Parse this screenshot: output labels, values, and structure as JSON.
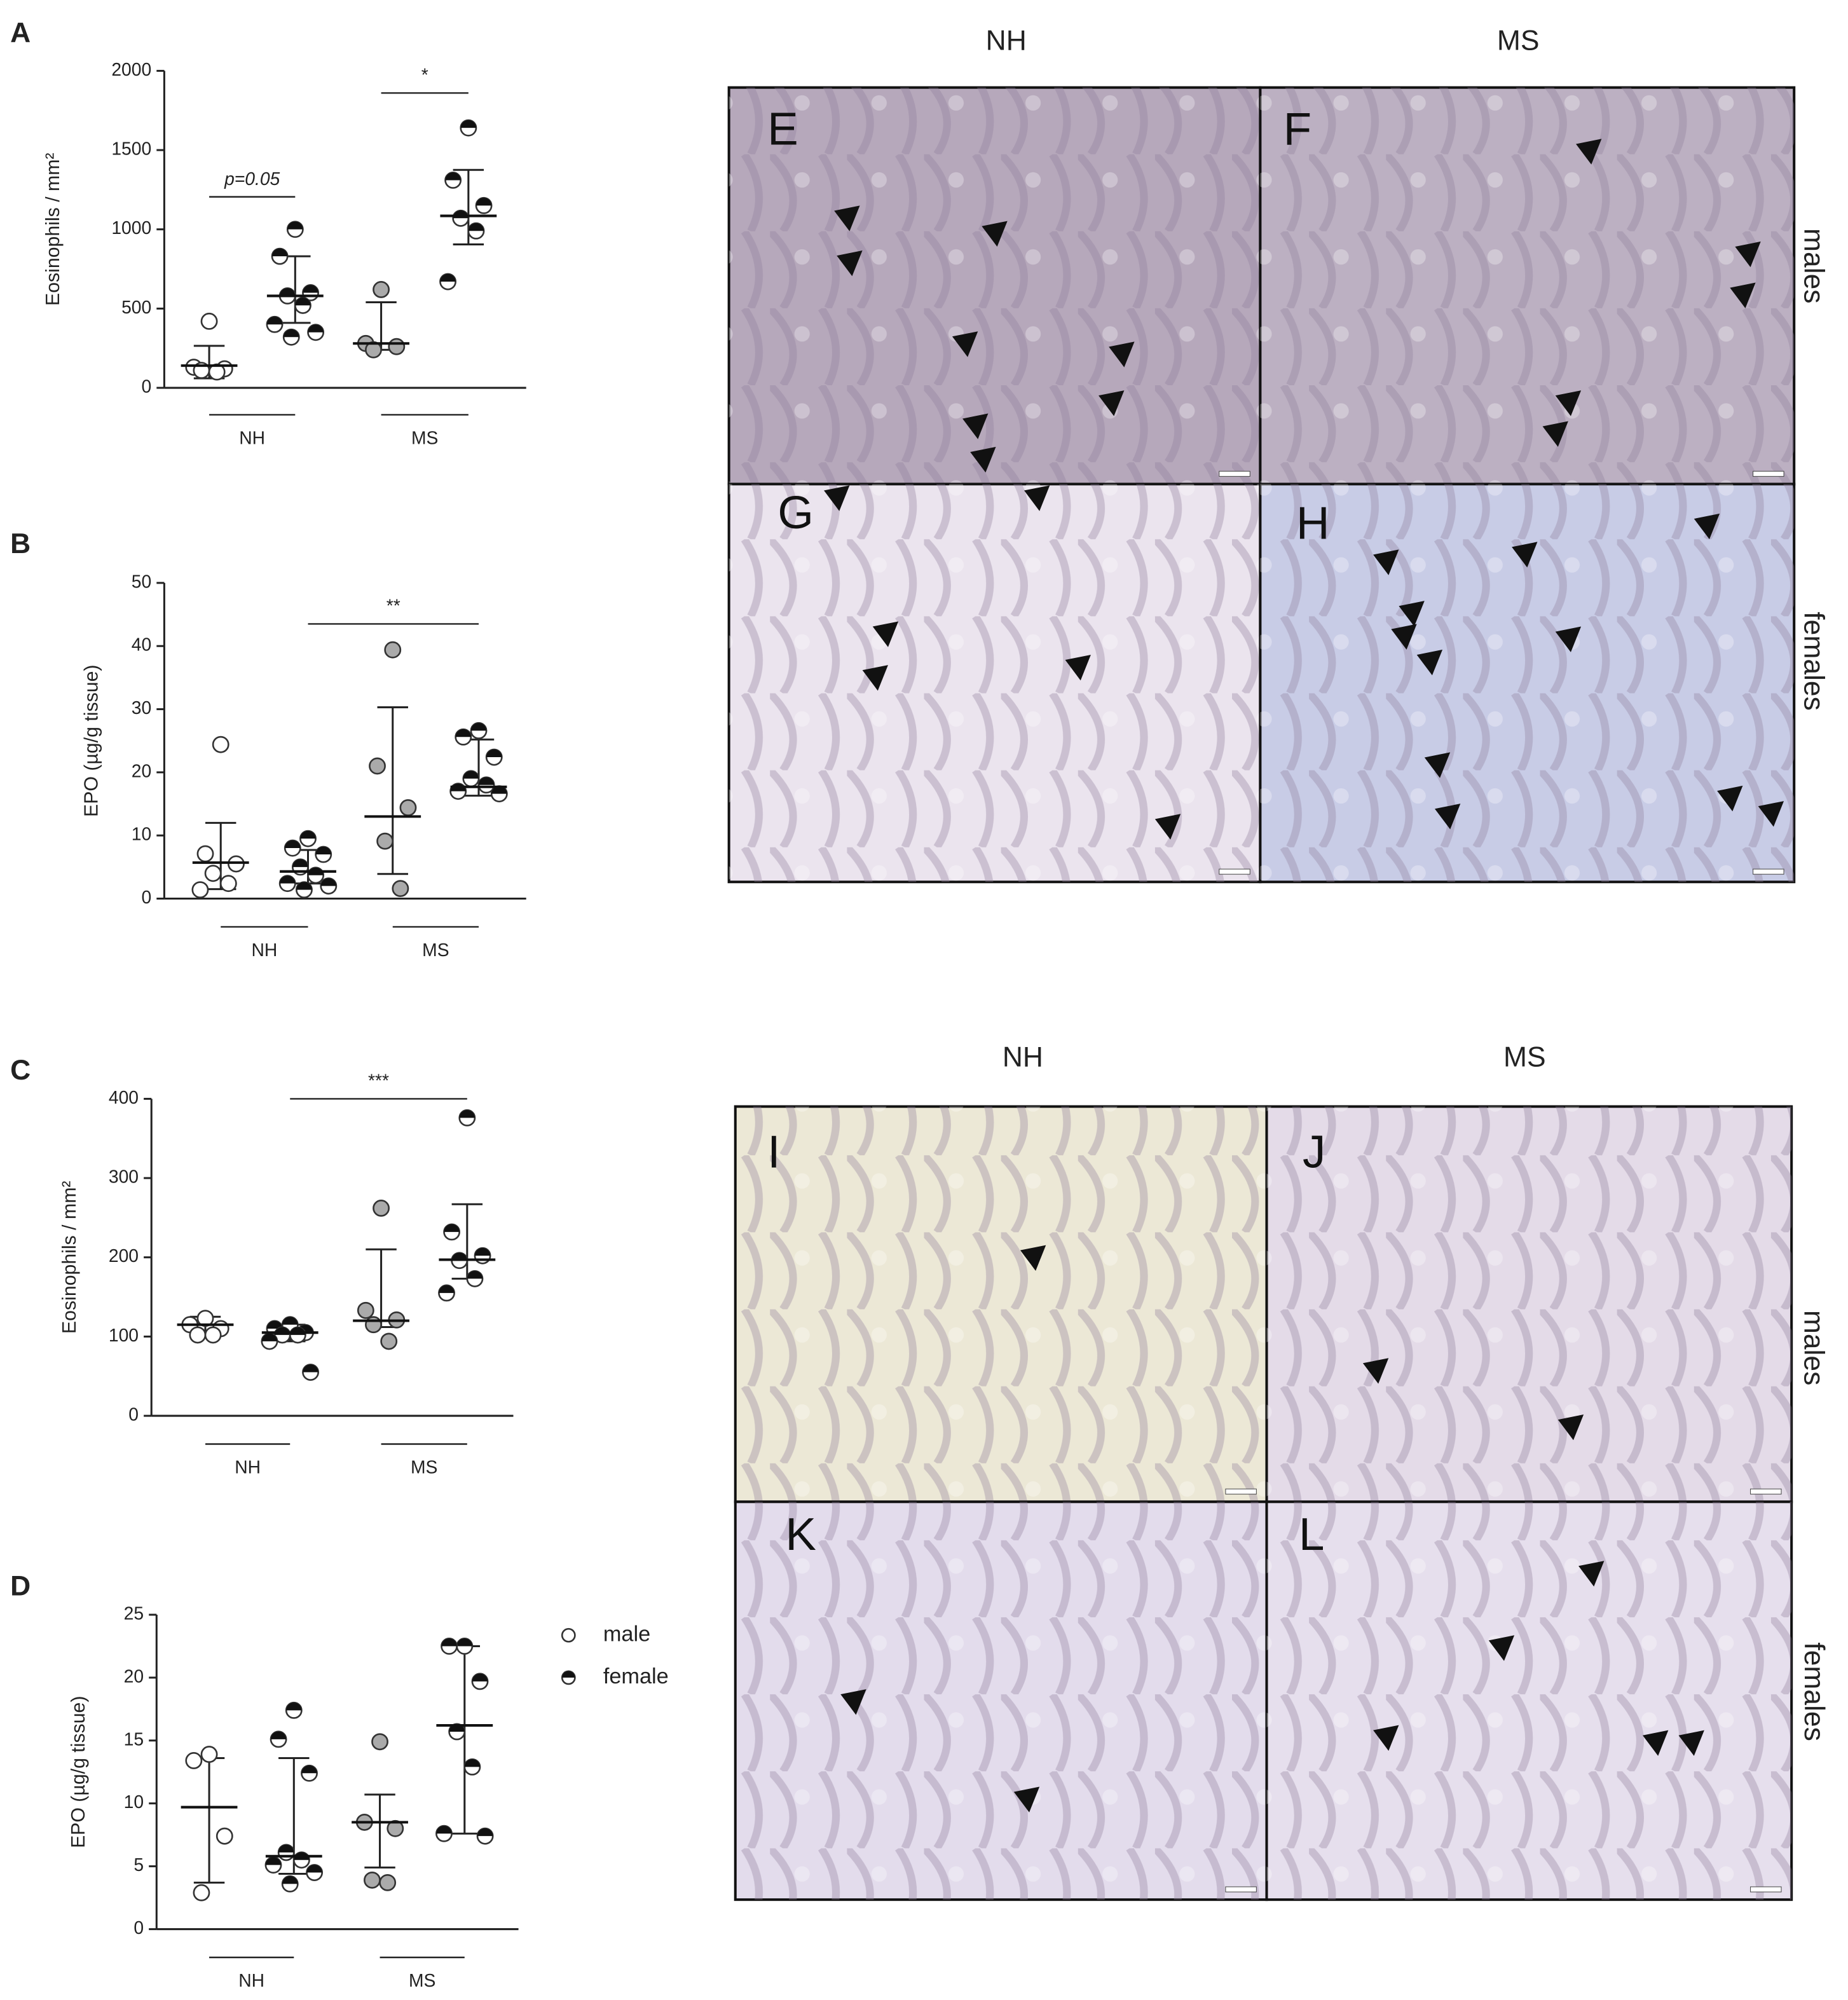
{
  "chart_data": [
    {
      "panel": "A",
      "type": "scatter",
      "y_label": "Eosinophils / mm²",
      "categories": [
        "NH",
        "MS"
      ],
      "ylim": [
        0,
        2000
      ],
      "yticks": [
        0,
        500,
        1000,
        1500,
        2000
      ],
      "series": [
        {
          "category": 0,
          "marker": "open",
          "values": [
            420,
            130,
            120,
            110,
            100
          ],
          "center": 140,
          "upper": 265,
          "lower": 60
        },
        {
          "category": 0,
          "marker": "half",
          "values": [
            1000,
            830,
            600,
            580,
            520,
            400,
            350,
            320
          ],
          "center": 580,
          "upper": 830,
          "lower": 410
        },
        {
          "category": 1,
          "marker": "gray",
          "values": [
            620,
            280,
            260,
            240
          ],
          "center": 280,
          "upper": 540,
          "lower": 240
        },
        {
          "category": 1,
          "marker": "half",
          "values": [
            1640,
            1310,
            1150,
            1070,
            990,
            670
          ],
          "center": 1085,
          "upper": 1375,
          "lower": 905
        }
      ],
      "annotations": [
        {
          "text": "p=0.05",
          "from": 0,
          "to": 1,
          "y": 1205
        },
        {
          "text": "*",
          "from": 2,
          "to": 3,
          "y": 1860
        }
      ]
    },
    {
      "panel": "B",
      "type": "scatter",
      "y_label": "EPO (µg/g tissue)",
      "categories": [
        "NH",
        "MS"
      ],
      "ylim": [
        0,
        50
      ],
      "yticks": [
        0,
        10,
        20,
        30,
        40,
        50
      ],
      "series": [
        {
          "category": 0,
          "marker": "open",
          "values": [
            24.4,
            7.1,
            5.5,
            4,
            2.4,
            1.4
          ],
          "center": 5.7,
          "upper": 12,
          "lower": 1.5
        },
        {
          "category": 0,
          "marker": "half",
          "values": [
            9.5,
            8,
            7,
            5,
            3.7,
            2.4,
            2,
            1.4
          ],
          "center": 4.3,
          "upper": 7.7,
          "lower": 2.4
        },
        {
          "category": 1,
          "marker": "gray",
          "values": [
            39.4,
            21,
            14.4,
            9.1,
            1.6
          ],
          "center": 13,
          "upper": 30.3,
          "lower": 3.9
        },
        {
          "category": 1,
          "marker": "half",
          "values": [
            26.6,
            25.6,
            22.4,
            19,
            18,
            17,
            16.6
          ],
          "center": 17.7,
          "upper": 25.2,
          "lower": 16.3
        }
      ],
      "annotations": [
        {
          "text": "**",
          "from": 1,
          "to": 3,
          "y": 43.5
        }
      ]
    },
    {
      "panel": "C",
      "type": "scatter",
      "y_label": "Eosinophils / mm²",
      "categories": [
        "NH",
        "MS"
      ],
      "ylim": [
        0,
        400
      ],
      "yticks": [
        0,
        100,
        200,
        300,
        400
      ],
      "series": [
        {
          "category": 0,
          "marker": "open",
          "values": [
            123,
            115,
            110,
            102,
            102
          ],
          "center": 115,
          "upper": 125,
          "lower": 104
        },
        {
          "category": 0,
          "marker": "half",
          "values": [
            115,
            110,
            105,
            102,
            102,
            94,
            55
          ],
          "center": 105,
          "upper": 115,
          "lower": 94
        },
        {
          "category": 1,
          "marker": "gray",
          "values": [
            262,
            133,
            121,
            115,
            94
          ],
          "center": 120,
          "upper": 210,
          "lower": 112
        },
        {
          "category": 1,
          "marker": "half",
          "values": [
            376,
            232,
            202,
            196,
            173,
            155
          ],
          "center": 197,
          "upper": 267,
          "lower": 173
        }
      ],
      "annotations": [
        {
          "text": "***",
          "from": 1,
          "to": 3,
          "y": 400
        }
      ]
    },
    {
      "panel": "D",
      "type": "scatter",
      "y_label": "EPO (µg/g tissue)",
      "categories": [
        "NH",
        "MS"
      ],
      "ylim": [
        0,
        25
      ],
      "yticks": [
        0,
        5,
        10,
        15,
        20,
        25
      ],
      "series": [
        {
          "category": 0,
          "marker": "open",
          "values": [
            13.9,
            13.4,
            7.4,
            2.9
          ],
          "center": 9.7,
          "upper": 13.6,
          "lower": 3.7
        },
        {
          "category": 0,
          "marker": "half",
          "values": [
            17.4,
            15.1,
            12.4,
            6.1,
            5.5,
            5.1,
            4.5,
            3.6
          ],
          "center": 5.8,
          "upper": 13.6,
          "lower": 4.4
        },
        {
          "category": 1,
          "marker": "gray",
          "values": [
            14.9,
            8.5,
            8,
            3.9,
            3.7
          ],
          "center": 8.5,
          "upper": 10.7,
          "lower": 4.9
        },
        {
          "category": 1,
          "marker": "half",
          "values": [
            22.5,
            22.5,
            19.7,
            15.7,
            12.9,
            7.6,
            7.4
          ],
          "center": 16.2,
          "upper": 22.5,
          "lower": 7.6
        }
      ],
      "legend": [
        {
          "label": "male",
          "marker": "open"
        },
        {
          "label": "female",
          "marker": "half"
        }
      ]
    }
  ],
  "micrographs": [
    {
      "columns": [
        "NH",
        "MS"
      ],
      "rows": [
        "males",
        "females"
      ],
      "panels": [
        "E",
        "F",
        "G",
        "H"
      ]
    },
    {
      "columns": [
        "NH",
        "MS"
      ],
      "rows": [
        "males",
        "females"
      ],
      "panels": [
        "I",
        "J",
        "K",
        "L"
      ]
    }
  ]
}
